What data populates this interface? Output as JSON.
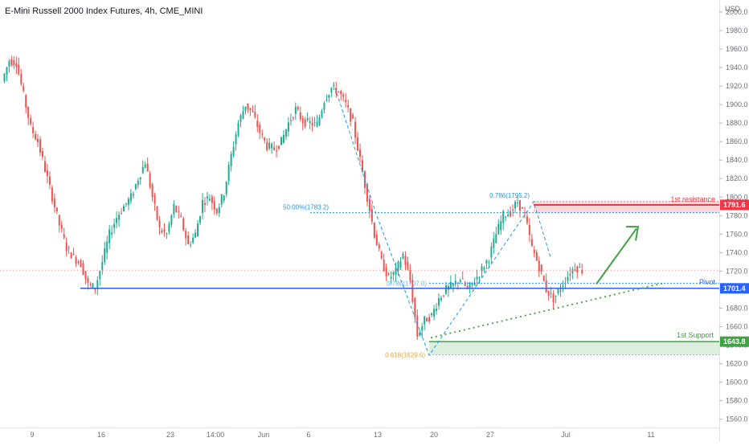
{
  "header": {
    "title": "E-Mini Russell 2000 Index Futures, 4h, CME_MINI"
  },
  "colors": {
    "up": "#26a69a",
    "up_fill": "#22ab94",
    "down": "#ef5350",
    "pivot": "#2962ff",
    "support": "#43a047",
    "resistance": "#f23645",
    "fib": "#2196f3",
    "fib_gold": "#e8a33a",
    "axis_text": "#6a6d78",
    "grid": "#e0e3eb"
  },
  "chart_data": {
    "type": "candlestick",
    "title": "E-Mini Russell 2000 Index Futures, 4h, CME_MINI",
    "ylabel": "USD",
    "ylim": [
      1551,
      2013
    ],
    "yticks": [
      1560,
      1580,
      1600,
      1620,
      1640,
      1660,
      1680,
      1700,
      1720,
      1740,
      1760,
      1780,
      1800,
      1820,
      1840,
      1860,
      1880,
      1900,
      1920,
      1940,
      1960,
      1980,
      2000
    ],
    "x_tick_labels": [
      "9",
      "16",
      "23",
      "14:00",
      "Jun",
      "6",
      "13",
      "20",
      "27",
      "Jul",
      "11"
    ],
    "last_price": 1721,
    "price_path": [
      [
        0,
        1925
      ],
      [
        1,
        1948
      ],
      [
        2,
        1945
      ],
      [
        3,
        1910
      ],
      [
        4,
        1875
      ],
      [
        5,
        1860
      ],
      [
        6,
        1830
      ],
      [
        7,
        1800
      ],
      [
        8,
        1770
      ],
      [
        9,
        1745
      ],
      [
        10,
        1735
      ],
      [
        11,
        1728
      ],
      [
        12,
        1705
      ],
      [
        13,
        1702
      ],
      [
        14,
        1730
      ],
      [
        15,
        1760
      ],
      [
        16,
        1778
      ],
      [
        17,
        1790
      ],
      [
        18,
        1800
      ],
      [
        19,
        1820
      ],
      [
        20,
        1838
      ],
      [
        21,
        1800
      ],
      [
        22,
        1765
      ],
      [
        23,
        1760
      ],
      [
        24,
        1790
      ],
      [
        25,
        1775
      ],
      [
        26,
        1748
      ],
      [
        27,
        1760
      ],
      [
        28,
        1795
      ],
      [
        29,
        1800
      ],
      [
        30,
        1785
      ],
      [
        31,
        1805
      ],
      [
        32,
        1845
      ],
      [
        33,
        1880
      ],
      [
        34,
        1900
      ],
      [
        35,
        1890
      ],
      [
        36,
        1870
      ],
      [
        37,
        1855
      ],
      [
        38,
        1852
      ],
      [
        39,
        1860
      ],
      [
        40,
        1880
      ],
      [
        41,
        1895
      ],
      [
        42,
        1882
      ],
      [
        43,
        1880
      ],
      [
        44,
        1878
      ],
      [
        45,
        1905
      ],
      [
        46,
        1918
      ],
      [
        47,
        1914
      ],
      [
        48,
        1900
      ],
      [
        49,
        1880
      ],
      [
        50,
        1840
      ],
      [
        51,
        1800
      ],
      [
        52,
        1760
      ],
      [
        53,
        1730
      ],
      [
        54,
        1712
      ],
      [
        55,
        1720
      ],
      [
        56,
        1738
      ],
      [
        57,
        1710
      ],
      [
        58,
        1650
      ],
      [
        59,
        1667
      ],
      [
        60,
        1672
      ],
      [
        61,
        1690
      ],
      [
        62,
        1700
      ],
      [
        63,
        1705
      ],
      [
        64,
        1712
      ],
      [
        65,
        1700
      ],
      [
        66,
        1710
      ],
      [
        67,
        1722
      ],
      [
        68,
        1735
      ],
      [
        69,
        1760
      ],
      [
        70,
        1780
      ],
      [
        71,
        1784
      ],
      [
        72,
        1795
      ],
      [
        73,
        1780
      ],
      [
        74,
        1745
      ],
      [
        75,
        1725
      ],
      [
        76,
        1700
      ],
      [
        77,
        1690
      ],
      [
        78,
        1702
      ],
      [
        79,
        1715
      ],
      [
        80,
        1725
      ],
      [
        81,
        1721
      ]
    ],
    "levels": [
      {
        "name": "1st resistance",
        "value": 1791.6
      },
      {
        "name": "Pivot",
        "value": 1701.4
      },
      {
        "name": "1st Support",
        "value": 1643.8
      }
    ],
    "fib_labels": [
      {
        "text": "50.00%(1783.2)",
        "value": 1783.2
      },
      {
        "text": "0.786(1795.2)",
        "value": 1795.2
      },
      {
        "text": "0.618(1629.6)",
        "value": 1629.6
      },
      {
        "text": "0.786(1707.0)",
        "value": 1707.0
      }
    ],
    "resistance_zone": [
      1783.2,
      1795.2
    ],
    "support_zone": [
      1629.6,
      1643.8
    ],
    "price_tags": [
      "1791.6",
      "1701.4",
      "1643.8"
    ]
  }
}
